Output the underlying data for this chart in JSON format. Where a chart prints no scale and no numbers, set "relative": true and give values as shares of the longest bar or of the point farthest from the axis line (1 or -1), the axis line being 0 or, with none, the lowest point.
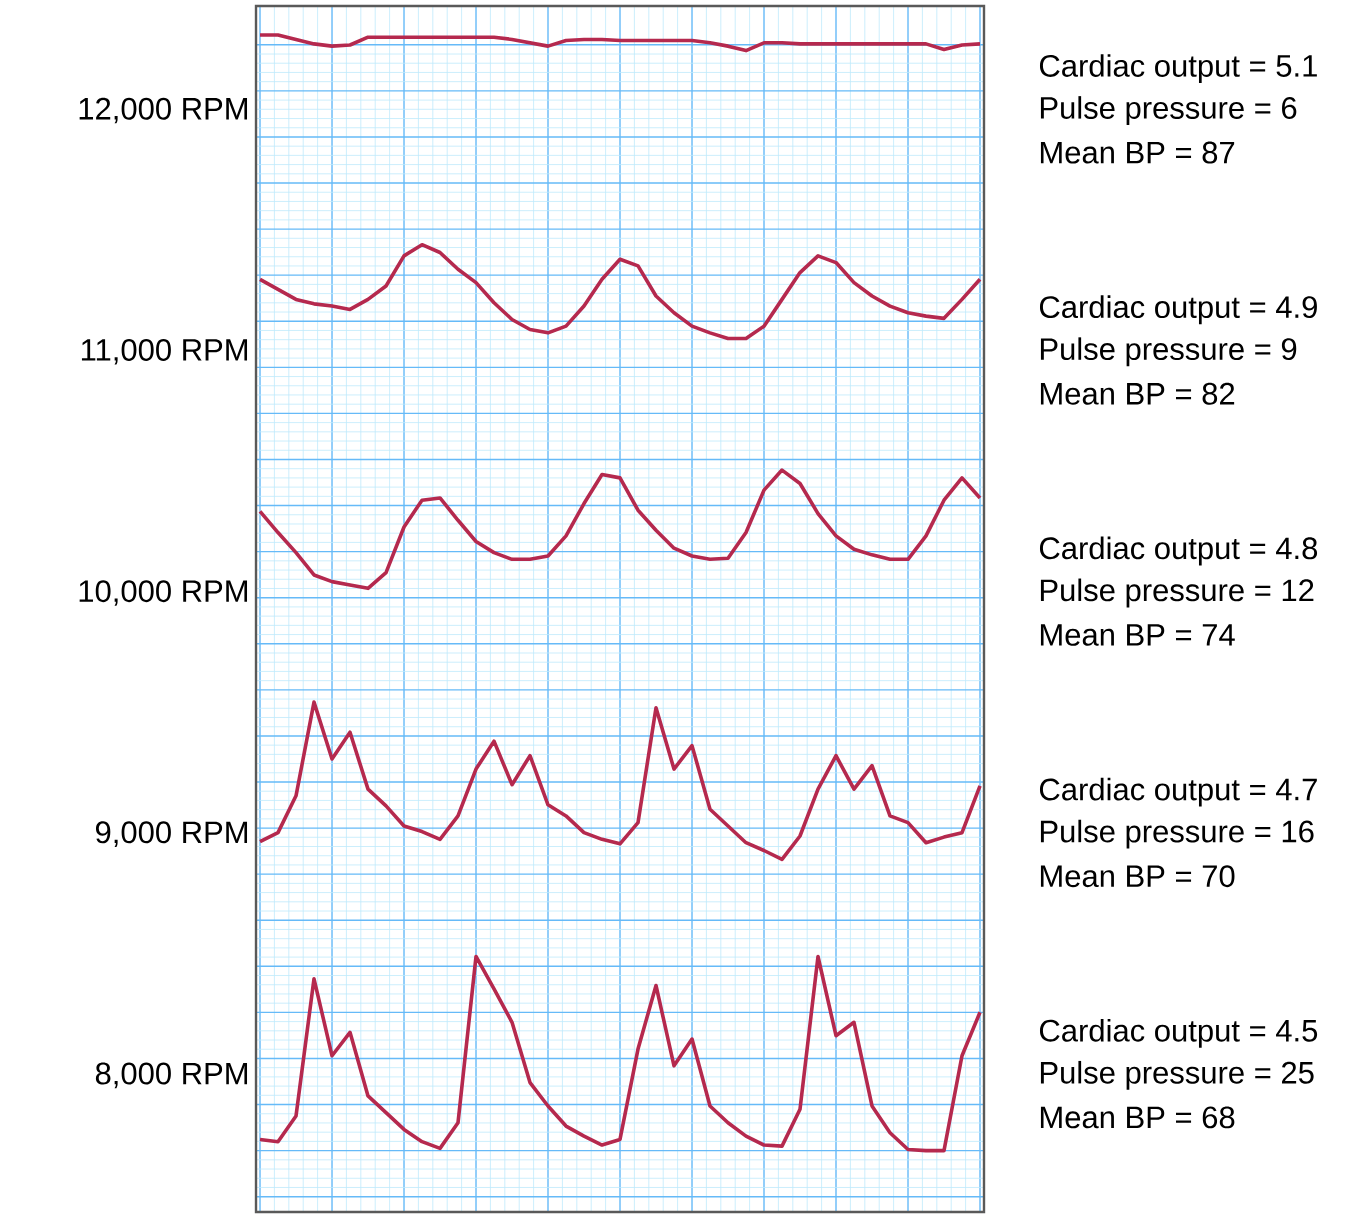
{
  "chart_data": {
    "type": "line",
    "relative": true,
    "grid": true,
    "categories": [
      null,
      null,
      null,
      null,
      null,
      null,
      null,
      null,
      null,
      null,
      null,
      null,
      null,
      null,
      null,
      null,
      null,
      null,
      null,
      null,
      null,
      null,
      null,
      null,
      null,
      null,
      null,
      null,
      null,
      null,
      null,
      null,
      null,
      null,
      null,
      null,
      null,
      null,
      null,
      null,
      null
    ],
    "series": [
      {
        "name": "12,000 RPM",
        "color": "#b5294e",
        "values": [
          1.0,
          1.0,
          0.996,
          0.992,
          0.99,
          0.991,
          0.998,
          0.998,
          0.998,
          0.998,
          0.998,
          0.998,
          0.998,
          0.998,
          0.996,
          0.993,
          0.99,
          0.995,
          0.996,
          0.996,
          0.995,
          0.995,
          0.995,
          0.995,
          0.995,
          0.993,
          0.99,
          0.986,
          0.993,
          0.993,
          0.992,
          0.992,
          0.992,
          0.992,
          0.992,
          0.992,
          0.992,
          0.992,
          0.987,
          0.991,
          0.992
        ]
      },
      {
        "name": "11,000 RPM",
        "color": "#b5294e",
        "values": [
          0.781,
          0.772,
          0.763,
          0.759,
          0.757,
          0.754,
          0.763,
          0.775,
          0.802,
          0.812,
          0.805,
          0.79,
          0.778,
          0.76,
          0.745,
          0.736,
          0.733,
          0.739,
          0.757,
          0.781,
          0.799,
          0.793,
          0.766,
          0.751,
          0.739,
          0.733,
          0.728,
          0.728,
          0.739,
          0.763,
          0.787,
          0.802,
          0.796,
          0.778,
          0.766,
          0.757,
          0.751,
          0.748,
          0.746,
          0.763,
          0.781
        ]
      },
      {
        "name": "10,000 RPM",
        "color": "#b5294e",
        "values": [
          0.573,
          0.554,
          0.536,
          0.516,
          0.51,
          0.507,
          0.504,
          0.518,
          0.559,
          0.583,
          0.585,
          0.565,
          0.546,
          0.536,
          0.53,
          0.53,
          0.533,
          0.551,
          0.58,
          0.606,
          0.603,
          0.574,
          0.556,
          0.54,
          0.533,
          0.53,
          0.531,
          0.554,
          0.592,
          0.61,
          0.598,
          0.571,
          0.551,
          0.539,
          0.534,
          0.53,
          0.53,
          0.551,
          0.583,
          0.603,
          0.585
        ]
      },
      {
        "name": "9,000 RPM",
        "color": "#b5294e",
        "values": [
          0.277,
          0.285,
          0.318,
          0.402,
          0.351,
          0.375,
          0.324,
          0.309,
          0.291,
          0.286,
          0.279,
          0.3,
          0.342,
          0.367,
          0.328,
          0.354,
          0.31,
          0.3,
          0.285,
          0.279,
          0.275,
          0.294,
          0.397,
          0.342,
          0.363,
          0.306,
          0.291,
          0.276,
          0.269,
          0.261,
          0.282,
          0.324,
          0.354,
          0.324,
          0.345,
          0.3,
          0.294,
          0.276,
          0.281,
          0.285,
          0.327
        ]
      },
      {
        "name": "8,000 RPM",
        "color": "#b5294e",
        "values": [
          0.01,
          0.008,
          0.031,
          0.154,
          0.085,
          0.106,
          0.049,
          0.034,
          0.019,
          0.008,
          0.002,
          0.025,
          0.174,
          0.145,
          0.115,
          0.061,
          0.04,
          0.022,
          0.013,
          0.005,
          0.01,
          0.091,
          0.148,
          0.076,
          0.1,
          0.04,
          0.025,
          0.013,
          0.005,
          0.004,
          0.037,
          0.174,
          0.103,
          0.115,
          0.04,
          0.016,
          0.001,
          0,
          0,
          0.085,
          0.124
        ]
      }
    ],
    "annotations": [
      "Cardiac output = 5.1",
      "Pulse pressure = 6",
      "Mean BP = 87",
      "Cardiac output = 4.9",
      "Pulse pressure = 9",
      "Mean BP = 82",
      "Cardiac output = 4.8",
      "Pulse pressure = 12",
      "Mean BP = 74",
      "Cardiac output = 4.7",
      "Pulse pressure = 16",
      "Mean BP = 70",
      "Cardiac output = 4.5",
      "Pulse pressure = 25",
      "Mean BP = 68"
    ]
  }
}
